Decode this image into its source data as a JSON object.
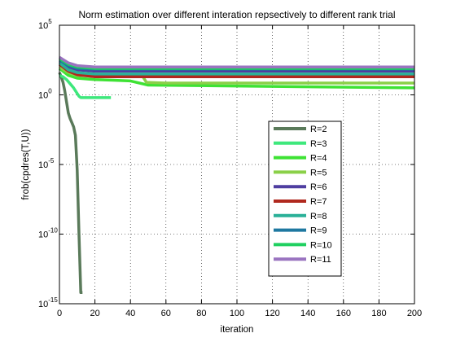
{
  "chart_data": {
    "type": "line",
    "title": "Norm estimation over different interation repsectively to different rank trial",
    "xlabel": "iteration",
    "ylabel": "frob(cpdres(T,U))",
    "xlim": [
      0,
      200
    ],
    "ylim_log10": [
      -15,
      5
    ],
    "yscale": "log",
    "grid": true,
    "legend_position": "center-right",
    "xticks": [
      0,
      20,
      40,
      60,
      80,
      100,
      120,
      140,
      160,
      180,
      200
    ],
    "yticks": [
      {
        "base": "10",
        "exp": "5"
      },
      {
        "base": "10",
        "exp": "0"
      },
      {
        "base": "10",
        "exp": "-5"
      },
      {
        "base": "10",
        "exp": "-10"
      },
      {
        "base": "10",
        "exp": "-15"
      }
    ],
    "series": [
      {
        "name": "R=2",
        "color": "#5a7a5a",
        "x": [
          0,
          1,
          2,
          3,
          4,
          5,
          6,
          7,
          8,
          9,
          10,
          11,
          12,
          13
        ],
        "log10_y": [
          1.6,
          1.3,
          0.9,
          0.3,
          -0.5,
          -1.3,
          -1.7,
          -2.0,
          -2.3,
          -2.9,
          -5.4,
          -10.0,
          -14.2,
          -14.2
        ]
      },
      {
        "name": "R=3",
        "color": "#3ee87c",
        "x": [
          0,
          2,
          4,
          6,
          8,
          10,
          11,
          12,
          14,
          16,
          20,
          24,
          28,
          29
        ],
        "log10_y": [
          1.4,
          1.3,
          1.1,
          0.8,
          0.5,
          0.1,
          -0.1,
          -0.2,
          -0.2,
          -0.2,
          -0.2,
          -0.2,
          -0.2,
          -0.2
        ]
      },
      {
        "name": "R=4",
        "color": "#3ee234",
        "x": [
          0,
          5,
          10,
          20,
          30,
          40,
          50,
          200
        ],
        "log10_y": [
          1.9,
          1.4,
          1.2,
          1.1,
          1.05,
          1.0,
          0.7,
          0.5
        ]
      },
      {
        "name": "R=5",
        "color": "#8ad048",
        "x": [
          0,
          5,
          10,
          30,
          47,
          49,
          60,
          100,
          200
        ],
        "log10_y": [
          2.0,
          1.6,
          1.4,
          1.3,
          1.3,
          0.9,
          0.85,
          0.85,
          0.85
        ]
      },
      {
        "name": "R=6",
        "color": "#4f3ea0",
        "x": [
          0,
          5,
          10,
          20,
          200
        ],
        "log10_y": [
          2.4,
          2.0,
          1.8,
          1.7,
          1.7
        ]
      },
      {
        "name": "R=7",
        "color": "#b0281e",
        "x": [
          0,
          5,
          10,
          20,
          200
        ],
        "log10_y": [
          2.2,
          1.7,
          1.45,
          1.3,
          1.3
        ]
      },
      {
        "name": "R=8",
        "color": "#2ab098",
        "x": [
          0,
          5,
          10,
          20,
          200
        ],
        "log10_y": [
          2.3,
          1.8,
          1.6,
          1.5,
          1.5
        ]
      },
      {
        "name": "R=9",
        "color": "#1e78a0",
        "x": [
          0,
          5,
          10,
          20,
          200
        ],
        "log10_y": [
          2.5,
          2.1,
          1.9,
          1.85,
          1.85
        ]
      },
      {
        "name": "R=10",
        "color": "#20d060",
        "x": [
          0,
          5,
          10,
          20,
          200
        ],
        "log10_y": [
          2.6,
          2.2,
          2.0,
          1.9,
          1.9
        ]
      },
      {
        "name": "R=11",
        "color": "#9a74c0",
        "x": [
          0,
          5,
          10,
          20,
          200
        ],
        "log10_y": [
          2.7,
          2.3,
          2.1,
          2.0,
          2.0
        ]
      }
    ]
  }
}
